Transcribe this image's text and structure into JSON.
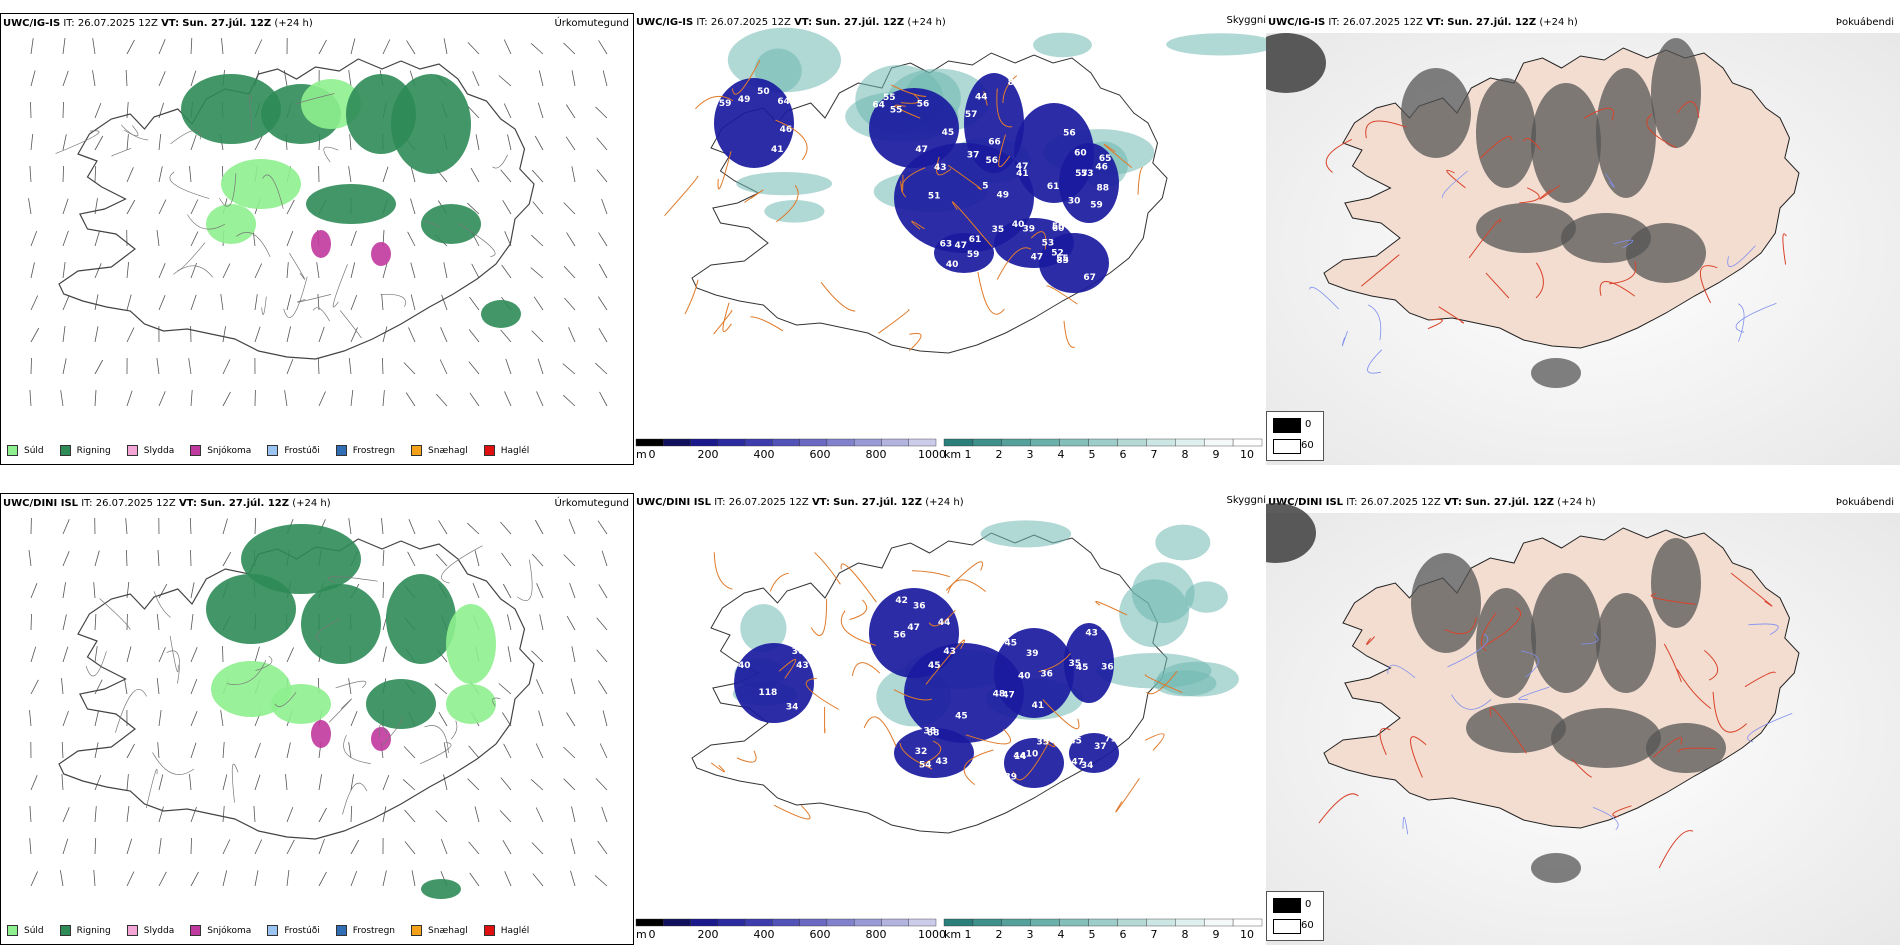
{
  "rows": [
    {
      "model": "UWC/IG-IS",
      "it_label": "IT:",
      "it_value": "26.07.2025 12Z",
      "vt_label": "VT:",
      "vt_value": "Sun. 27.júl. 12Z",
      "lead": "(+24 h)"
    },
    {
      "model": "UWC/DINI ISL",
      "it_label": "IT:",
      "it_value": "26.07.2025 12Z",
      "vt_label": "VT:",
      "vt_value": "Sun. 27.júl. 12Z",
      "lead": "(+24 h)"
    }
  ],
  "panel_titles": {
    "precip": "Úrkomutegund",
    "cloud": "Skyggni",
    "fog": "Þokuábendi"
  },
  "precip_legend": [
    {
      "label": "Súld",
      "color": "#8ef08e"
    },
    {
      "label": "Rigning",
      "color": "#2e8b57"
    },
    {
      "label": "Slydda",
      "color": "#f4a6d7"
    },
    {
      "label": "Snjókoma",
      "color": "#c0399f"
    },
    {
      "label": "Frostúði",
      "color": "#9cc4f2"
    },
    {
      "label": "Frostregn",
      "color": "#2f6db5"
    },
    {
      "label": "Snæhagl",
      "color": "#f5a21b"
    },
    {
      "label": "Haglél",
      "color": "#e01010"
    }
  ],
  "cloudbase_scale": {
    "unit": "m",
    "ticks": [
      "0",
      "200",
      "400",
      "600",
      "800",
      "1000"
    ]
  },
  "visibility_scale": {
    "unit": "km",
    "ticks": [
      "1",
      "2",
      "3",
      "4",
      "5",
      "6",
      "7",
      "8",
      "9",
      "10"
    ]
  },
  "fog_scale": {
    "ticks": [
      "0",
      "60"
    ]
  },
  "cloud_labels_top": [
    "59",
    "55",
    "5",
    "61",
    "65",
    "56",
    "59",
    "85",
    "50",
    "46",
    "45",
    "43",
    "56",
    "30",
    "57",
    "40",
    "55",
    "39",
    "41",
    "47",
    "35",
    "60",
    "53",
    "66",
    "61",
    "52",
    "60",
    "50",
    "55",
    "51",
    "47",
    "59",
    "81",
    "63",
    "53",
    "40",
    "49",
    "56",
    "37",
    "41",
    "46",
    "44",
    "47",
    "67",
    "47",
    "64",
    "64",
    "49",
    "57",
    "88"
  ],
  "cloud_labels_bottom": [
    "118",
    "56",
    "48",
    "39",
    "35",
    "32",
    "44",
    "47",
    "43",
    "44",
    "45",
    "45",
    "36",
    "43",
    "14",
    "37",
    "36",
    "47",
    "43",
    "41",
    "45",
    "54",
    "39",
    "45",
    "40",
    "36",
    "47",
    "36",
    "43",
    "38",
    "35",
    "34",
    "34",
    "42",
    "45",
    "40",
    "40",
    "68",
    "10",
    "79"
  ]
}
